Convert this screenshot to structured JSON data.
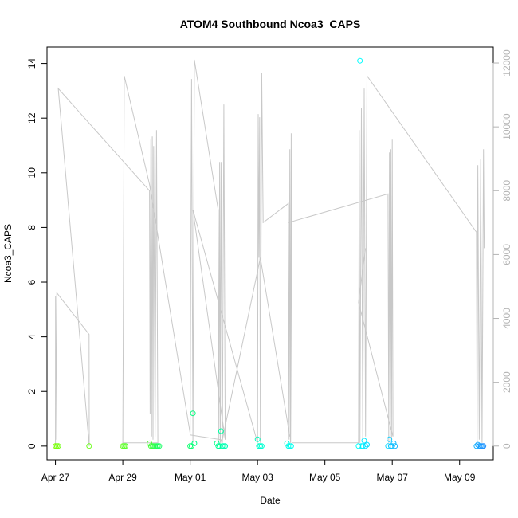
{
  "chart_data": {
    "type": "scatter",
    "title": "ATOM4 Southbound Ncoa3_CAPS",
    "xlabel": "Date",
    "ylabel": "Ncoa3_CAPS",
    "x_ticks": [
      "Apr 27",
      "Apr 29",
      "May 01",
      "May 03",
      "May 05",
      "May 07",
      "May 09"
    ],
    "y_ticks": [
      "0",
      "2",
      "4",
      "6",
      "8",
      "10",
      "12",
      "14"
    ],
    "y2_ticks": [
      "0",
      "2000",
      "4000",
      "6000",
      "8000",
      "10000",
      "12000"
    ],
    "xlim": [
      "2013-04-26T18:00",
      "2013-05-10T00:00"
    ],
    "ylim": [
      -0.5,
      14.6
    ],
    "y2lim": [
      -430,
      12500
    ],
    "grid": false,
    "series": [
      {
        "kind": "points",
        "color_scale": [
          "#7fff00",
          "#00ff7f",
          "#00ffff",
          "#1e90ff"
        ],
        "points": [
          {
            "x": "2013-04-27T00:00",
            "y": 0.0
          },
          {
            "x": "2013-04-27T01:00",
            "y": 0.0
          },
          {
            "x": "2013-04-27T02:00",
            "y": 0.0
          },
          {
            "x": "2013-04-28T00:00",
            "y": 0.0
          },
          {
            "x": "2013-04-29T00:00",
            "y": 0.0
          },
          {
            "x": "2013-04-29T01:00",
            "y": 0.0
          },
          {
            "x": "2013-04-29T02:00",
            "y": 0.0
          },
          {
            "x": "2013-04-29T19:00",
            "y": 0.1
          },
          {
            "x": "2013-04-29T20:00",
            "y": 0.0
          },
          {
            "x": "2013-04-29T21:00",
            "y": 0.0
          },
          {
            "x": "2013-04-29T22:00",
            "y": 0.0
          },
          {
            "x": "2013-04-29T23:00",
            "y": 0.0
          },
          {
            "x": "2013-04-30T00:00",
            "y": 0.0
          },
          {
            "x": "2013-04-30T01:00",
            "y": 0.0
          },
          {
            "x": "2013-04-30T02:00",
            "y": 0.0
          },
          {
            "x": "2013-05-01T00:00",
            "y": 0.0
          },
          {
            "x": "2013-05-01T01:00",
            "y": 0.0
          },
          {
            "x": "2013-05-01T02:00",
            "y": 1.2
          },
          {
            "x": "2013-05-01T03:00",
            "y": 0.1
          },
          {
            "x": "2013-05-01T19:00",
            "y": 0.1
          },
          {
            "x": "2013-05-01T20:00",
            "y": 0.0
          },
          {
            "x": "2013-05-01T21:00",
            "y": 0.0
          },
          {
            "x": "2013-05-01T22:00",
            "y": 0.55
          },
          {
            "x": "2013-05-01T23:00",
            "y": 0.0
          },
          {
            "x": "2013-05-02T00:00",
            "y": 0.0
          },
          {
            "x": "2013-05-02T01:00",
            "y": 0.0
          },
          {
            "x": "2013-05-03T00:00",
            "y": 0.25
          },
          {
            "x": "2013-05-03T01:00",
            "y": 0.0
          },
          {
            "x": "2013-05-03T02:00",
            "y": 0.0
          },
          {
            "x": "2013-05-03T03:00",
            "y": 0.0
          },
          {
            "x": "2013-05-03T21:00",
            "y": 0.1
          },
          {
            "x": "2013-05-03T22:00",
            "y": 0.0
          },
          {
            "x": "2013-05-03T23:00",
            "y": 0.0
          },
          {
            "x": "2013-05-04T00:00",
            "y": 0.0
          },
          {
            "x": "2013-05-06T00:00",
            "y": 0.0
          },
          {
            "x": "2013-05-06T01:00",
            "y": 14.1
          },
          {
            "x": "2013-05-06T02:00",
            "y": 0.0
          },
          {
            "x": "2013-05-06T03:00",
            "y": 0.0
          },
          {
            "x": "2013-05-06T04:00",
            "y": 0.2
          },
          {
            "x": "2013-05-06T05:00",
            "y": 0.0
          },
          {
            "x": "2013-05-06T06:00",
            "y": 0.05
          },
          {
            "x": "2013-05-06T21:00",
            "y": 0.0
          },
          {
            "x": "2013-05-06T22:00",
            "y": 0.25
          },
          {
            "x": "2013-05-06T23:00",
            "y": 0.0
          },
          {
            "x": "2013-05-07T00:00",
            "y": 0.0
          },
          {
            "x": "2013-05-07T01:00",
            "y": 0.1
          },
          {
            "x": "2013-05-07T02:00",
            "y": 0.0
          },
          {
            "x": "2013-05-09T12:00",
            "y": 0.0
          },
          {
            "x": "2013-05-09T13:00",
            "y": 0.05
          },
          {
            "x": "2013-05-09T14:00",
            "y": 0.0
          },
          {
            "x": "2013-05-09T15:00",
            "y": 0.0
          },
          {
            "x": "2013-05-09T16:00",
            "y": 0.0
          },
          {
            "x": "2013-05-09T17:00",
            "y": 0.0
          }
        ]
      },
      {
        "kind": "line",
        "axis": "right",
        "color": "#c8c8c8",
        "points": [
          {
            "x": "2013-04-27T00:00",
            "y": 0
          },
          {
            "x": "2013-04-27T00:05",
            "y": 4700
          },
          {
            "x": "2013-04-27T00:10",
            "y": 200
          },
          {
            "x": "2013-04-27T01:00",
            "y": 4800
          },
          {
            "x": "2013-04-28T00:00",
            "y": 3500
          },
          {
            "x": "2013-04-28T00:05",
            "y": 0
          },
          {
            "x": "2013-04-27T02:00",
            "y": 11200
          },
          {
            "x": "2013-04-29T19:00",
            "y": 8000
          },
          {
            "x": "2013-04-29T19:30",
            "y": 1000
          },
          {
            "x": "2013-04-29T20:00",
            "y": 9600
          },
          {
            "x": "2013-04-29T20:30",
            "y": 300
          },
          {
            "x": "2013-04-29T21:00",
            "y": 9700
          },
          {
            "x": "2013-04-29T21:30",
            "y": 200
          },
          {
            "x": "2013-04-29T22:00",
            "y": 9400
          },
          {
            "x": "2013-04-29T23:00",
            "y": 300
          },
          {
            "x": "2013-04-30T00:00",
            "y": 9900
          },
          {
            "x": "2013-04-30T01:00",
            "y": 100
          },
          {
            "x": "2013-04-29T00:00",
            "y": 100
          },
          {
            "x": "2013-04-29T01:00",
            "y": 11600
          },
          {
            "x": "2013-04-29T19:00",
            "y": 8200
          },
          {
            "x": "2013-05-01T00:00",
            "y": 400
          },
          {
            "x": "2013-05-01T01:00",
            "y": 11500
          },
          {
            "x": "2013-05-01T02:00",
            "y": 100
          },
          {
            "x": "2013-05-01T03:00",
            "y": 12100
          },
          {
            "x": "2013-05-01T20:00",
            "y": 7400
          },
          {
            "x": "2013-05-01T20:30",
            "y": 100
          },
          {
            "x": "2013-05-01T21:00",
            "y": 8900
          },
          {
            "x": "2013-05-01T21:30",
            "y": 100
          },
          {
            "x": "2013-05-01T22:00",
            "y": 8900
          },
          {
            "x": "2013-05-01T23:00",
            "y": 100
          },
          {
            "x": "2013-05-02T00:00",
            "y": 10700
          },
          {
            "x": "2013-05-02T01:00",
            "y": 200
          },
          {
            "x": "2013-05-01T02:00",
            "y": 7400
          },
          {
            "x": "2013-05-03T00:00",
            "y": 100
          },
          {
            "x": "2013-05-03T00:30",
            "y": 10400
          },
          {
            "x": "2013-05-03T01:00",
            "y": 5900
          },
          {
            "x": "2013-05-03T01:30",
            "y": 10300
          },
          {
            "x": "2013-05-03T02:00",
            "y": 100
          },
          {
            "x": "2013-05-03T03:00",
            "y": 11700
          },
          {
            "x": "2013-05-03T04:00",
            "y": 7000
          },
          {
            "x": "2013-05-03T04:00",
            "y": 7000
          },
          {
            "x": "2013-05-03T22:00",
            "y": 7600
          },
          {
            "x": "2013-05-03T22:30",
            "y": 200
          },
          {
            "x": "2013-05-03T23:00",
            "y": 9300
          },
          {
            "x": "2013-05-03T23:30",
            "y": 100
          },
          {
            "x": "2013-05-04T00:00",
            "y": 9800
          },
          {
            "x": "2013-05-04T00:30",
            "y": 100
          },
          {
            "x": "2013-05-06T00:00",
            "y": 100
          },
          {
            "x": "2013-05-06T00:30",
            "y": 9900
          },
          {
            "x": "2013-05-06T01:00",
            "y": 100
          },
          {
            "x": "2013-05-06T02:00",
            "y": 10600
          },
          {
            "x": "2013-05-06T03:00",
            "y": 200
          },
          {
            "x": "2013-05-06T04:00",
            "y": 11200
          },
          {
            "x": "2013-05-06T05:00",
            "y": 300
          },
          {
            "x": "2013-05-06T06:00",
            "y": 11600
          },
          {
            "x": "2013-05-09T12:00",
            "y": 6700
          },
          {
            "x": "2013-05-09T12:30",
            "y": 100
          },
          {
            "x": "2013-05-09T13:00",
            "y": 8800
          },
          {
            "x": "2013-05-09T14:00",
            "y": 200
          },
          {
            "x": "2013-05-09T15:00",
            "y": 9000
          },
          {
            "x": "2013-05-09T16:00",
            "y": 100
          },
          {
            "x": "2013-05-09T17:00",
            "y": 9300
          },
          {
            "x": "2013-05-09T17:30",
            "y": 6200
          }
        ]
      },
      {
        "kind": "line",
        "axis": "right",
        "color": "#c8c8c8",
        "points": [
          {
            "x": "2013-05-03T22:00",
            "y": 7000
          },
          {
            "x": "2013-05-06T21:00",
            "y": 7900
          },
          {
            "x": "2013-05-06T21:30",
            "y": 100
          },
          {
            "x": "2013-05-06T22:00",
            "y": 9200
          },
          {
            "x": "2013-05-06T22:30",
            "y": 100
          },
          {
            "x": "2013-05-06T23:00",
            "y": 9300
          },
          {
            "x": "2013-05-06T23:30",
            "y": 200
          },
          {
            "x": "2013-05-07T00:00",
            "y": 9600
          },
          {
            "x": "2013-05-07T00:30",
            "y": 300
          },
          {
            "x": "2013-05-06T00:00",
            "y": 4500
          },
          {
            "x": "2013-05-06T05:00",
            "y": 6200
          }
        ]
      },
      {
        "kind": "line",
        "axis": "right",
        "color": "#c8c8c8",
        "points": [
          {
            "x": "2013-05-01T00:00",
            "y": 350
          },
          {
            "x": "2013-05-01T22:00",
            "y": 200
          },
          {
            "x": "2013-05-01T22:30",
            "y": 100
          },
          {
            "x": "2013-05-03T02:00",
            "y": 5900
          },
          {
            "x": "2013-05-03T23:00",
            "y": 300
          }
        ]
      }
    ]
  }
}
